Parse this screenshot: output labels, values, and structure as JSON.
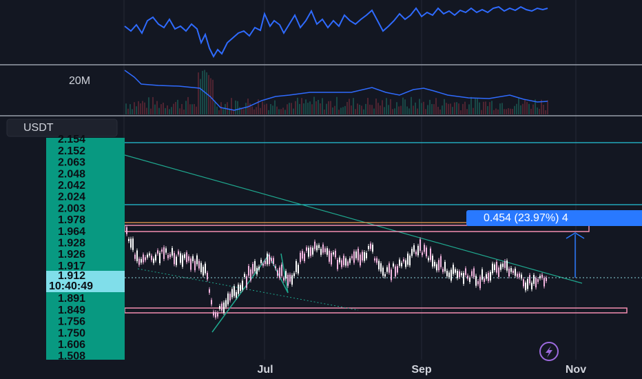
{
  "toolbar": {
    "currency_button": "USDT"
  },
  "volume_pane": {
    "label": "20M"
  },
  "price_axis": {
    "labels_above": [
      "2.154",
      "2.152",
      "2.063",
      "2.048",
      "2.042",
      "2.024",
      "2.003",
      "1.978",
      "1.964",
      "1.928",
      "1.926",
      "1.917"
    ],
    "current_price": "1.912",
    "countdown": "10:40:49",
    "labels_below": [
      "1.891",
      "1.849",
      "1.756",
      "1.750",
      "1.606",
      "1.508"
    ]
  },
  "measure": {
    "label": "0.454 (23.97%) 4"
  },
  "time_axis": {
    "labels": [
      "Jul",
      "Sep",
      "Nov"
    ]
  }
}
